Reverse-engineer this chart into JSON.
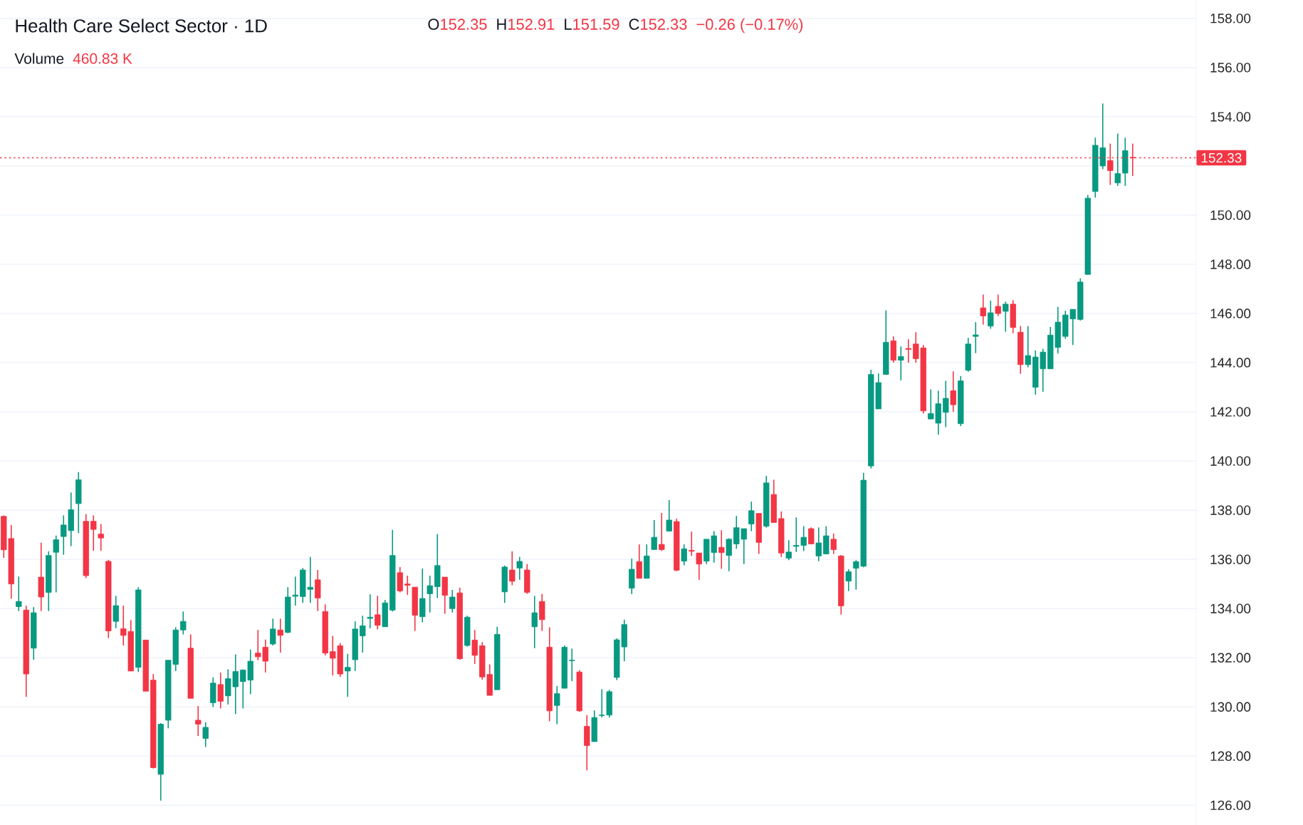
{
  "chart_data": {
    "type": "candlestick",
    "title": "Health Care Select Sector · 1D",
    "annotations": [
      "O",
      "152.35",
      "H",
      "152.91",
      "L",
      "151.59",
      "C",
      "152.33",
      "−0.26 (−0.17%)",
      "Volume",
      "460.83 K"
    ],
    "categories": [
      null,
      null,
      null,
      null,
      null,
      null,
      null,
      null,
      null,
      null,
      null,
      null,
      null,
      null,
      null,
      null,
      null,
      null,
      null,
      null,
      null,
      null,
      null,
      null,
      null,
      null,
      null,
      null,
      null,
      null,
      null,
      null,
      null,
      null,
      null,
      null,
      null,
      null,
      null,
      null,
      null,
      null,
      null,
      null,
      null,
      null,
      null,
      null,
      null,
      null,
      null,
      null,
      null,
      null,
      null,
      null,
      null,
      null,
      null,
      null,
      null,
      null,
      null,
      null,
      null,
      null,
      null,
      null,
      null,
      null,
      null,
      null,
      null,
      null,
      null,
      null,
      null,
      null,
      null,
      null,
      null,
      null,
      null,
      null,
      null,
      null,
      null,
      null,
      null,
      null,
      null,
      null,
      null,
      null,
      null,
      null,
      null,
      null,
      null,
      null,
      null,
      null,
      null,
      null,
      null,
      null,
      null,
      null,
      null,
      null,
      null,
      null,
      null,
      null,
      null,
      null,
      null,
      null,
      null,
      null,
      null,
      null,
      null,
      null,
      null,
      null,
      null,
      null,
      null,
      null,
      null,
      null,
      null,
      null,
      null,
      null,
      null,
      null,
      null,
      null,
      null,
      null,
      null,
      null,
      null,
      null,
      null,
      null,
      null,
      null,
      null,
      null,
      null,
      null,
      null,
      null,
      null,
      null,
      null,
      null
    ],
    "colors": [
      "#f23645",
      "#f23645",
      "#089981",
      "#f23645",
      "#089981",
      "#f23645",
      "#089981",
      "#089981",
      "#089981",
      "#089981",
      "#089981",
      "#f23645",
      "#f23645",
      "#f23645",
      "#f23645",
      "#089981",
      "#f23645",
      "#f23645",
      "#089981",
      "#f23645",
      "#f23645",
      "#089981",
      "#089981",
      "#089981",
      "#089981",
      "#f23645",
      "#f23645",
      "#089981",
      "#089981",
      "#f23645",
      "#089981",
      "#089981",
      "#089981",
      "#089981",
      "#f23645",
      "#f23645",
      "#089981",
      "#f23645",
      "#089981",
      "#089981",
      "#089981",
      "#089981",
      "#f23645",
      "#f23645",
      "#f23645",
      "#f23645",
      "#089981",
      "#089981",
      "#089981",
      "#089981",
      "#f23645",
      "#089981",
      "#089981",
      "#f23645",
      "#f23645",
      "#f23645",
      "#089981",
      "#089981",
      "#089981",
      "#f23645",
      "#089981",
      "#f23645",
      "#089981",
      "#f23645",
      "#f23645",
      "#f23645",
      "#089981",
      "#089981",
      "#f23645",
      "#089981",
      "#f23645",
      "#089981",
      "#f23645",
      "#f23645",
      "#089981",
      "#089981",
      "#089981",
      "#f23645",
      "#f23645",
      "#089981",
      "#089981",
      "#089981",
      "#089981",
      "#089981",
      "#089981",
      "#f23645",
      "#089981",
      "#089981",
      "#f23645",
      "#089981",
      "#f23645",
      "#089981",
      "#f23645",
      "#f23645",
      "#089981",
      "#089981",
      "#f23645",
      "#089981",
      "#089981",
      "#089981",
      "#089981",
      "#f23645",
      "#089981",
      "#f23645",
      "#f23645",
      "#089981",
      "#089981",
      "#089981",
      "#f23645",
      "#089981",
      "#089981",
      "#f23645",
      "#f23645",
      "#089981",
      "#089981",
      "#089981",
      "#089981",
      "#089981",
      "#089981",
      "#f23645",
      "#089981",
      "#f23645",
      "#f23645",
      "#f23645",
      "#089981",
      "#089981",
      "#089981",
      "#f23645",
      "#089981",
      "#089981",
      "#089981",
      "#f23645",
      "#089981",
      "#f23645",
      "#089981",
      "#f23645",
      "#f23645",
      "#089981",
      "#089981",
      "#089981",
      "#089981",
      "#089981",
      "#089981",
      "#089981",
      "#089981",
      "#089981",
      "#089981",
      "#089981",
      "#f23645",
      "#089981",
      "#089981",
      "#f23645",
      null,
      null,
      null,
      null,
      null,
      null,
      null,
      null
    ],
    "ohlc": [
      [
        137.75,
        137.79,
        136.06,
        136.39
      ],
      [
        136.85,
        137.4,
        134.4,
        135.0
      ],
      [
        134.08,
        135.3,
        133.9,
        134.29
      ],
      [
        133.94,
        134.12,
        130.41,
        131.34
      ],
      [
        132.39,
        134.06,
        131.92,
        133.83
      ],
      [
        135.28,
        136.68,
        133.9,
        134.47
      ],
      [
        134.66,
        136.33,
        133.9,
        136.16
      ],
      [
        136.29,
        136.97,
        134.66,
        136.8
      ],
      [
        136.93,
        137.79,
        136.19,
        137.4
      ],
      [
        137.17,
        138.72,
        136.54,
        138.02
      ],
      [
        138.27,
        139.55,
        137.07,
        139.24
      ],
      [
        137.55,
        137.84,
        135.24,
        135.34
      ],
      [
        137.55,
        137.79,
        136.35,
        137.22
      ],
      [
        137.03,
        137.44,
        136.35,
        136.87
      ],
      [
        135.92,
        135.98,
        132.8,
        133.09
      ],
      [
        133.48,
        134.52,
        133.2,
        134.12
      ],
      [
        133.18,
        134.12,
        132.5,
        132.91
      ],
      [
        133.07,
        133.53,
        131.46,
        131.46
      ],
      [
        131.61,
        134.87,
        131.42,
        134.76
      ],
      [
        132.72,
        132.72,
        130.64,
        130.64
      ],
      [
        131.09,
        131.34,
        127.5,
        127.53
      ],
      [
        127.26,
        129.34,
        126.19,
        129.3
      ],
      [
        129.46,
        131.9,
        129.13,
        131.9
      ],
      [
        131.73,
        133.24,
        131.46,
        133.13
      ],
      [
        133.13,
        133.88,
        132.95,
        133.48
      ],
      [
        132.39,
        132.95,
        130.35,
        130.35
      ],
      [
        129.46,
        130.04,
        128.82,
        129.3
      ],
      [
        128.72,
        129.38,
        128.37,
        129.17
      ],
      [
        130.17,
        131.2,
        130.0,
        130.97
      ],
      [
        130.91,
        131.4,
        129.94,
        130.23
      ],
      [
        130.45,
        131.53,
        130.1,
        131.15
      ],
      [
        130.82,
        132.14,
        129.71,
        131.44
      ],
      [
        131.03,
        131.53,
        129.94,
        131.5
      ],
      [
        131.09,
        132.33,
        130.52,
        131.86
      ],
      [
        132.19,
        133.13,
        131.9,
        132.04
      ],
      [
        132.43,
        132.74,
        131.4,
        131.86
      ],
      [
        132.56,
        133.59,
        132.5,
        133.17
      ],
      [
        133.13,
        133.59,
        132.21,
        132.91
      ],
      [
        133.03,
        134.87,
        133.0,
        134.47
      ],
      [
        134.5,
        135.3,
        134.12,
        134.55
      ],
      [
        134.49,
        135.65,
        134.23,
        135.57
      ],
      [
        134.78,
        136.1,
        134.23,
        134.87
      ],
      [
        135.17,
        135.57,
        133.9,
        134.43
      ],
      [
        133.88,
        134.17,
        132.1,
        132.19
      ],
      [
        132.25,
        132.89,
        131.28,
        131.98
      ],
      [
        132.49,
        132.6,
        131.22,
        131.34
      ],
      [
        131.46,
        132.16,
        130.41,
        131.61
      ],
      [
        131.92,
        133.48,
        131.46,
        133.17
      ],
      [
        132.89,
        133.71,
        132.21,
        133.3
      ],
      [
        133.6,
        134.58,
        133.2,
        133.65
      ],
      [
        133.75,
        134.52,
        133.15,
        133.32
      ],
      [
        133.26,
        134.35,
        133.26,
        134.23
      ],
      [
        133.94,
        137.2,
        133.88,
        136.16
      ],
      [
        135.46,
        135.69,
        134.66,
        134.72
      ],
      [
        135.0,
        135.34,
        134.56,
        134.95
      ],
      [
        134.87,
        134.87,
        133.09,
        133.73
      ],
      [
        133.67,
        135.63,
        133.44,
        134.41
      ],
      [
        134.6,
        135.34,
        133.84,
        134.93
      ],
      [
        134.89,
        137.03,
        134.43,
        135.75
      ],
      [
        135.28,
        135.28,
        133.79,
        134.54
      ],
      [
        134.0,
        134.76,
        133.84,
        134.47
      ],
      [
        134.64,
        134.85,
        131.92,
        131.96
      ],
      [
        132.5,
        133.71,
        132.45,
        133.65
      ],
      [
        132.72,
        133.13,
        131.75,
        132.1
      ],
      [
        132.49,
        132.64,
        131.11,
        131.22
      ],
      [
        131.32,
        131.73,
        130.47,
        130.47
      ],
      [
        130.7,
        133.26,
        130.7,
        132.95
      ],
      [
        134.68,
        135.75,
        134.23,
        135.69
      ],
      [
        135.57,
        136.33,
        134.95,
        135.11
      ],
      [
        135.65,
        136.1,
        135.17,
        135.92
      ],
      [
        135.57,
        135.81,
        134.6,
        134.66
      ],
      [
        133.26,
        134.52,
        132.39,
        133.83
      ],
      [
        134.29,
        134.6,
        133.09,
        133.55
      ],
      [
        132.43,
        133.24,
        129.42,
        129.84
      ],
      [
        130.06,
        130.85,
        129.3,
        130.54
      ],
      [
        130.76,
        132.5,
        130.76,
        132.43
      ],
      [
        131.88,
        132.37,
        131.05,
        131.9
      ],
      [
        131.42,
        131.5,
        129.8,
        129.84
      ],
      [
        129.21,
        129.67,
        127.42,
        128.43
      ],
      [
        128.59,
        129.86,
        128.59,
        129.57
      ],
      [
        129.65,
        130.72,
        129.57,
        129.67
      ],
      [
        129.67,
        130.7,
        129.57,
        130.62
      ],
      [
        131.2,
        132.79,
        131.09,
        132.73
      ],
      [
        132.44,
        133.55,
        131.86,
        133.35
      ],
      [
        134.83,
        136.03,
        134.59,
        135.6
      ],
      [
        135.91,
        136.61,
        135.23,
        135.23
      ],
      [
        135.23,
        136.61,
        135.23,
        136.14
      ],
      [
        136.4,
        137.6,
        136.4,
        136.9
      ],
      [
        136.61,
        137.89,
        136.34,
        136.4
      ],
      [
        137.15,
        138.41,
        137.15,
        137.6
      ],
      [
        137.54,
        137.66,
        135.52,
        135.56
      ],
      [
        135.93,
        136.61,
        135.76,
        136.43
      ],
      [
        136.37,
        137.13,
        136.14,
        136.33
      ],
      [
        136.26,
        136.26,
        135.17,
        135.81
      ],
      [
        135.93,
        136.82,
        135.81,
        136.82
      ],
      [
        136.28,
        137.15,
        135.87,
        136.96
      ],
      [
        136.49,
        137.19,
        135.62,
        136.28
      ],
      [
        136.16,
        136.86,
        135.52,
        136.82
      ],
      [
        136.63,
        137.77,
        136.43,
        137.29
      ],
      [
        136.82,
        137.25,
        135.81,
        137.25
      ],
      [
        137.44,
        138.35,
        137.15,
        137.98
      ],
      [
        137.87,
        137.87,
        136.22,
        136.69
      ],
      [
        137.35,
        139.4,
        137.29,
        139.11
      ],
      [
        138.64,
        139.24,
        137.5,
        137.5
      ],
      [
        137.66,
        137.95,
        136.1,
        136.26
      ],
      [
        136.05,
        136.78,
        135.97,
        136.3
      ],
      [
        136.53,
        137.71,
        136.3,
        136.57
      ],
      [
        136.57,
        137.35,
        136.34,
        136.9
      ],
      [
        137.25,
        137.3,
        136.63,
        136.63
      ],
      [
        136.14,
        137.3,
        135.93,
        136.67
      ],
      [
        136.22,
        137.35,
        136.22,
        136.96
      ],
      [
        136.82,
        137.05,
        136.22,
        136.4
      ],
      [
        136.14,
        136.18,
        133.76,
        134.11
      ],
      [
        135.12,
        135.6,
        134.71,
        135.5
      ],
      [
        135.64,
        135.97,
        134.77,
        135.91
      ],
      [
        135.72,
        139.52,
        135.68,
        139.22
      ],
      [
        139.8,
        143.71,
        139.7,
        143.52
      ],
      [
        142.12,
        143.56,
        142.12,
        143.19
      ],
      [
        143.52,
        146.13,
        143.52,
        144.83
      ],
      [
        144.89,
        145.07,
        144.0,
        144.1
      ],
      [
        144.1,
        144.66,
        143.28,
        144.25
      ],
      [
        144.58,
        144.95,
        144.0,
        144.54
      ],
      [
        144.76,
        145.24,
        144.0,
        144.16
      ],
      [
        144.6,
        144.72,
        141.93,
        142.04
      ],
      [
        141.71,
        142.91,
        141.71,
        141.93
      ],
      [
        141.54,
        142.86,
        141.07,
        142.33
      ],
      [
        141.98,
        143.26,
        141.38,
        142.55
      ],
      [
        142.86,
        143.65,
        142.0,
        142.29
      ],
      [
        141.52,
        143.46,
        141.42,
        143.26
      ],
      [
        143.69,
        145.01,
        143.63,
        144.76
      ],
      [
        145.07,
        145.65,
        144.39,
        145.13
      ],
      [
        146.23,
        146.77,
        145.55,
        145.9
      ],
      [
        145.49,
        146.52,
        145.38,
        146.03
      ],
      [
        146.29,
        146.77,
        145.9,
        146.0
      ],
      [
        146.09,
        146.48,
        145.26,
        146.38
      ],
      [
        146.38,
        146.54,
        145.2,
        145.43
      ],
      [
        145.24,
        145.49,
        143.55,
        143.92
      ],
      [
        143.92,
        145.49,
        143.81,
        144.29
      ],
      [
        143.0,
        144.5,
        142.7,
        144.23
      ],
      [
        143.75,
        144.56,
        142.82,
        144.43
      ],
      [
        143.75,
        145.45,
        143.75,
        145.12
      ],
      [
        144.62,
        146.27,
        144.37,
        145.65
      ],
      [
        145.07,
        146.11,
        144.97,
        145.94
      ],
      [
        145.78,
        146.17,
        144.72,
        146.17
      ],
      [
        145.76,
        147.43,
        145.71,
        147.28
      ],
      [
        147.59,
        150.82,
        147.59,
        150.69
      ],
      [
        150.96,
        153.15,
        150.71,
        152.84
      ],
      [
        152.0,
        154.54,
        151.87,
        152.74
      ],
      [
        152.22,
        152.91,
        151.23,
        151.81
      ],
      [
        151.31,
        153.32,
        151.19,
        151.69
      ],
      [
        151.71,
        153.15,
        151.19,
        152.62
      ],
      [
        152.35,
        152.91,
        151.59,
        152.33
      ],
      null,
      null,
      null,
      null,
      null,
      null,
      null,
      null
    ],
    "ylim": [
      125.2,
      158.75
    ],
    "yticks": [
      {
        "value": 126,
        "label": "126.00"
      },
      {
        "value": 128,
        "label": "128.00"
      },
      {
        "value": 130,
        "label": "130.00"
      },
      {
        "value": 132,
        "label": "132.00"
      },
      {
        "value": 134,
        "label": "134.00"
      },
      {
        "value": 136,
        "label": "136.00"
      },
      {
        "value": 138,
        "label": "138.00"
      },
      {
        "value": 140,
        "label": "140.00"
      },
      {
        "value": 142,
        "label": "142.00"
      },
      {
        "value": 144,
        "label": "144.00"
      },
      {
        "value": 146,
        "label": "146.00"
      },
      {
        "value": 148,
        "label": "148.00"
      },
      {
        "value": 150,
        "label": "150.00"
      },
      {
        "value": 152,
        "label": null
      },
      {
        "value": 154,
        "label": "154.00"
      },
      {
        "value": 156,
        "label": "156.00"
      },
      {
        "value": 158,
        "label": "158.00"
      }
    ],
    "ref_lines": [
      {
        "axis": "y",
        "value": 152.33,
        "label": "152.33",
        "color": "#f23645",
        "line_style": "dotted"
      }
    ],
    "grid": "y",
    "tick_labels": "y"
  }
}
